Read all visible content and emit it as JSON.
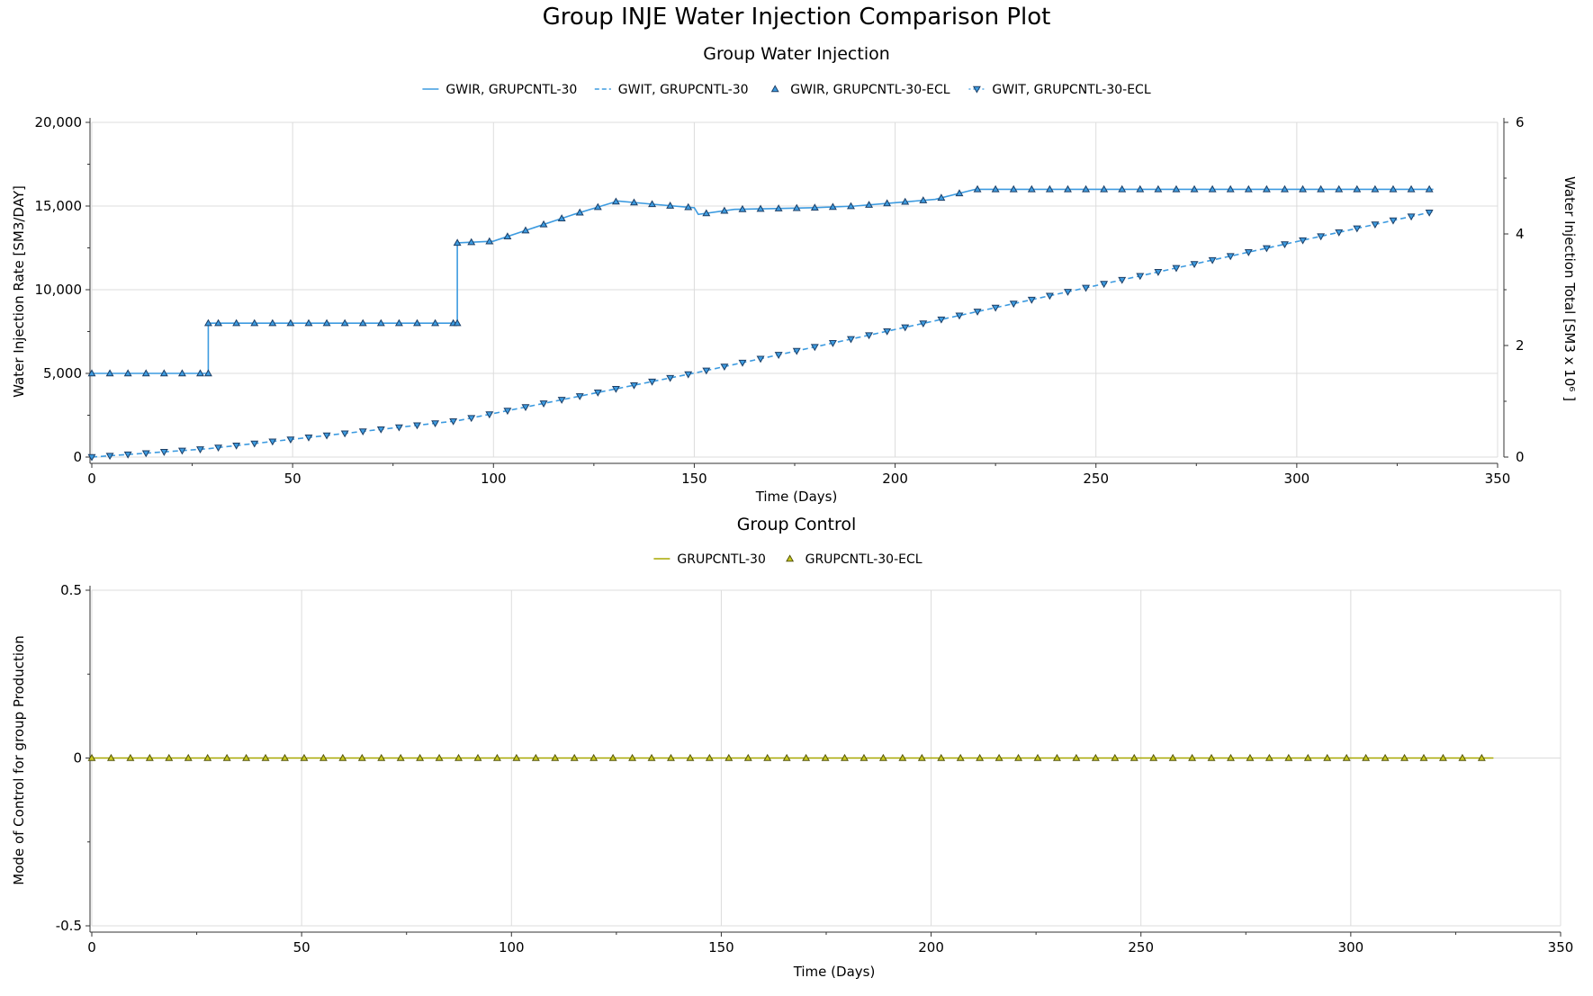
{
  "title": "Group INJE Water Injection Comparison Plot",
  "charts": {
    "top": {
      "subtitle": "Group Water Injection",
      "xlabel": "Time (Days)",
      "ylabel_left": "Water Injection Rate [SM3/DAY]",
      "ylabel_right": "Water Injection Total [SM3 x 10⁶ ]"
    },
    "bottom": {
      "subtitle": "Group Control",
      "xlabel": "Time (Days)",
      "ylabel": "Mode of Control for group Production"
    }
  },
  "chart_data": [
    {
      "type": "line",
      "title": "Group Water Injection",
      "xlabel": "Time (Days)",
      "ylabel": "Water Injection Rate [SM3/DAY]",
      "y2label": "Water Injection Total [SM3 x 10⁶ ]",
      "xlim": [
        0,
        350
      ],
      "ylim": [
        0,
        20000
      ],
      "y2lim": [
        0,
        6
      ],
      "xticks": [
        0,
        50,
        100,
        150,
        200,
        250,
        300,
        350
      ],
      "xtick_labels": [
        "0",
        "50",
        "100",
        "150",
        "200",
        "250",
        "300",
        "350"
      ],
      "yticks": [
        0,
        5000,
        10000,
        15000,
        20000
      ],
      "ytick_labels": [
        "0",
        "5,000",
        "10,000",
        "15,000",
        "20,000"
      ],
      "y2ticks": [
        0,
        2,
        4,
        6
      ],
      "y2tick_labels": [
        "0",
        "2",
        "4",
        "6"
      ],
      "grid": true,
      "legend_position": "top",
      "colors": {
        "line": "#3d9be0",
        "marker_fill": "#3d9be0",
        "marker_edge": "#1d3f66"
      },
      "series": [
        {
          "name": "GWIR, GRUPCNTL-30",
          "axis": "left",
          "style": "solid-step",
          "x": [
            0,
            29,
            29,
            91,
            91,
            100,
            110,
            120,
            131,
            140,
            150,
            151,
            160,
            170,
            180,
            190,
            200,
            210,
            220,
            230,
            240,
            250,
            260,
            270,
            280,
            290,
            300,
            310,
            320,
            334
          ],
          "y": [
            5000,
            5000,
            8000,
            8000,
            12800,
            12900,
            13700,
            14500,
            15300,
            15100,
            14900,
            14500,
            14800,
            14850,
            14900,
            15000,
            15200,
            15400,
            16000,
            16000,
            16000,
            16000,
            16000,
            16000,
            16000,
            16000,
            16000,
            16000,
            16000,
            16000
          ]
        },
        {
          "name": "GWIT, GRUPCNTL-30",
          "axis": "right",
          "style": "dashed",
          "x": [
            0,
            29,
            91,
            131,
            151,
            220,
            334
          ],
          "y": [
            0,
            0.15,
            0.65,
            1.23,
            1.52,
            2.6,
            4.4
          ]
        },
        {
          "name": "GWIR, GRUPCNTL-30-ECL",
          "axis": "left",
          "style": "marker-triangle-up",
          "x": [
            0,
            29,
            29,
            91,
            91,
            100,
            110,
            120,
            131,
            140,
            150,
            151,
            160,
            170,
            180,
            190,
            200,
            210,
            220,
            230,
            240,
            250,
            260,
            270,
            280,
            290,
            300,
            310,
            320,
            334
          ],
          "y": [
            5000,
            5000,
            8000,
            8000,
            12800,
            12900,
            13700,
            14500,
            15300,
            15100,
            14900,
            14500,
            14800,
            14850,
            14900,
            15000,
            15200,
            15400,
            16000,
            16000,
            16000,
            16000,
            16000,
            16000,
            16000,
            16000,
            16000,
            16000,
            16000,
            16000
          ]
        },
        {
          "name": "GWIT, GRUPCNTL-30-ECL",
          "axis": "right",
          "style": "marker-triangle-down",
          "x": [
            0,
            29,
            91,
            131,
            151,
            220,
            334
          ],
          "y": [
            0,
            0.15,
            0.65,
            1.23,
            1.52,
            2.6,
            4.4
          ]
        }
      ]
    },
    {
      "type": "line",
      "title": "Group Control",
      "xlabel": "Time (Days)",
      "ylabel": "Mode of Control for group Production",
      "xlim": [
        0,
        350
      ],
      "ylim": [
        -0.5,
        0.5
      ],
      "xticks": [
        0,
        50,
        100,
        150,
        200,
        250,
        300,
        350
      ],
      "xtick_labels": [
        "0",
        "50",
        "100",
        "150",
        "200",
        "250",
        "300",
        "350"
      ],
      "yticks": [
        -0.5,
        0,
        0.5
      ],
      "ytick_labels": [
        "-0.5",
        "0",
        "0.5"
      ],
      "grid": true,
      "legend_position": "top",
      "colors": {
        "line": "#a8a800",
        "marker_fill": "#c8c820",
        "marker_edge": "#55550a"
      },
      "series": [
        {
          "name": "GRUPCNTL-30",
          "style": "solid",
          "x": [
            0,
            334
          ],
          "y": [
            0,
            0
          ]
        },
        {
          "name": "GRUPCNTL-30-ECL",
          "style": "marker-triangle-up",
          "x": [
            0,
            334
          ],
          "y": [
            0,
            0
          ]
        }
      ]
    }
  ]
}
